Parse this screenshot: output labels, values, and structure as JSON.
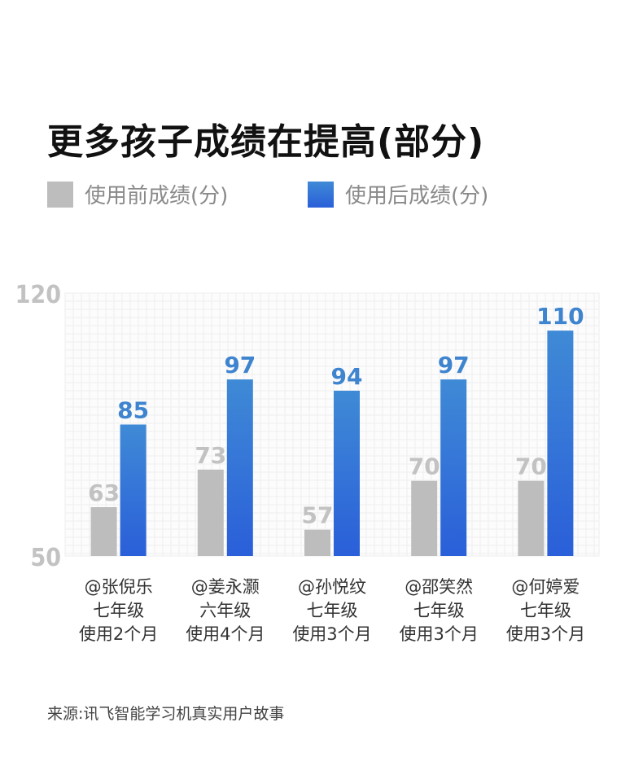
{
  "title": "更多孩子成绩在提高(部分)",
  "legend": {
    "before": "使用前成绩(分)",
    "after": "使用后成绩(分)"
  },
  "source": "来源:讯飞智能学习机真实用户故事",
  "colors": {
    "before": "#bdbdbd",
    "after_top": "#3f8ad6",
    "after_bottom": "#2a5fd9",
    "axis_text": "#c2c2c2",
    "value_after": "#3f84cf",
    "value_before": "#c2c2c2",
    "grid": "#eeeeee"
  },
  "chart_data": {
    "type": "bar",
    "categories": [
      [
        "@张倪乐",
        "七年级",
        "使用2个月"
      ],
      [
        "@姜永灏",
        "六年级",
        "使用4个月"
      ],
      [
        "@孙悦纹",
        "七年级",
        "使用3个月"
      ],
      [
        "@邵笑然",
        "七年级",
        "使用3个月"
      ],
      [
        "@何婷爱",
        "七年级",
        "使用3个月"
      ]
    ],
    "series": [
      {
        "name": "使用前成绩(分)",
        "values": [
          63,
          73,
          57,
          70,
          70
        ]
      },
      {
        "name": "使用后成绩(分)",
        "values": [
          85,
          97,
          94,
          97,
          110
        ]
      }
    ],
    "ylim": [
      50,
      120
    ],
    "yticks": [
      "120",
      "50"
    ],
    "grid": true,
    "legend_position": "top-left"
  }
}
